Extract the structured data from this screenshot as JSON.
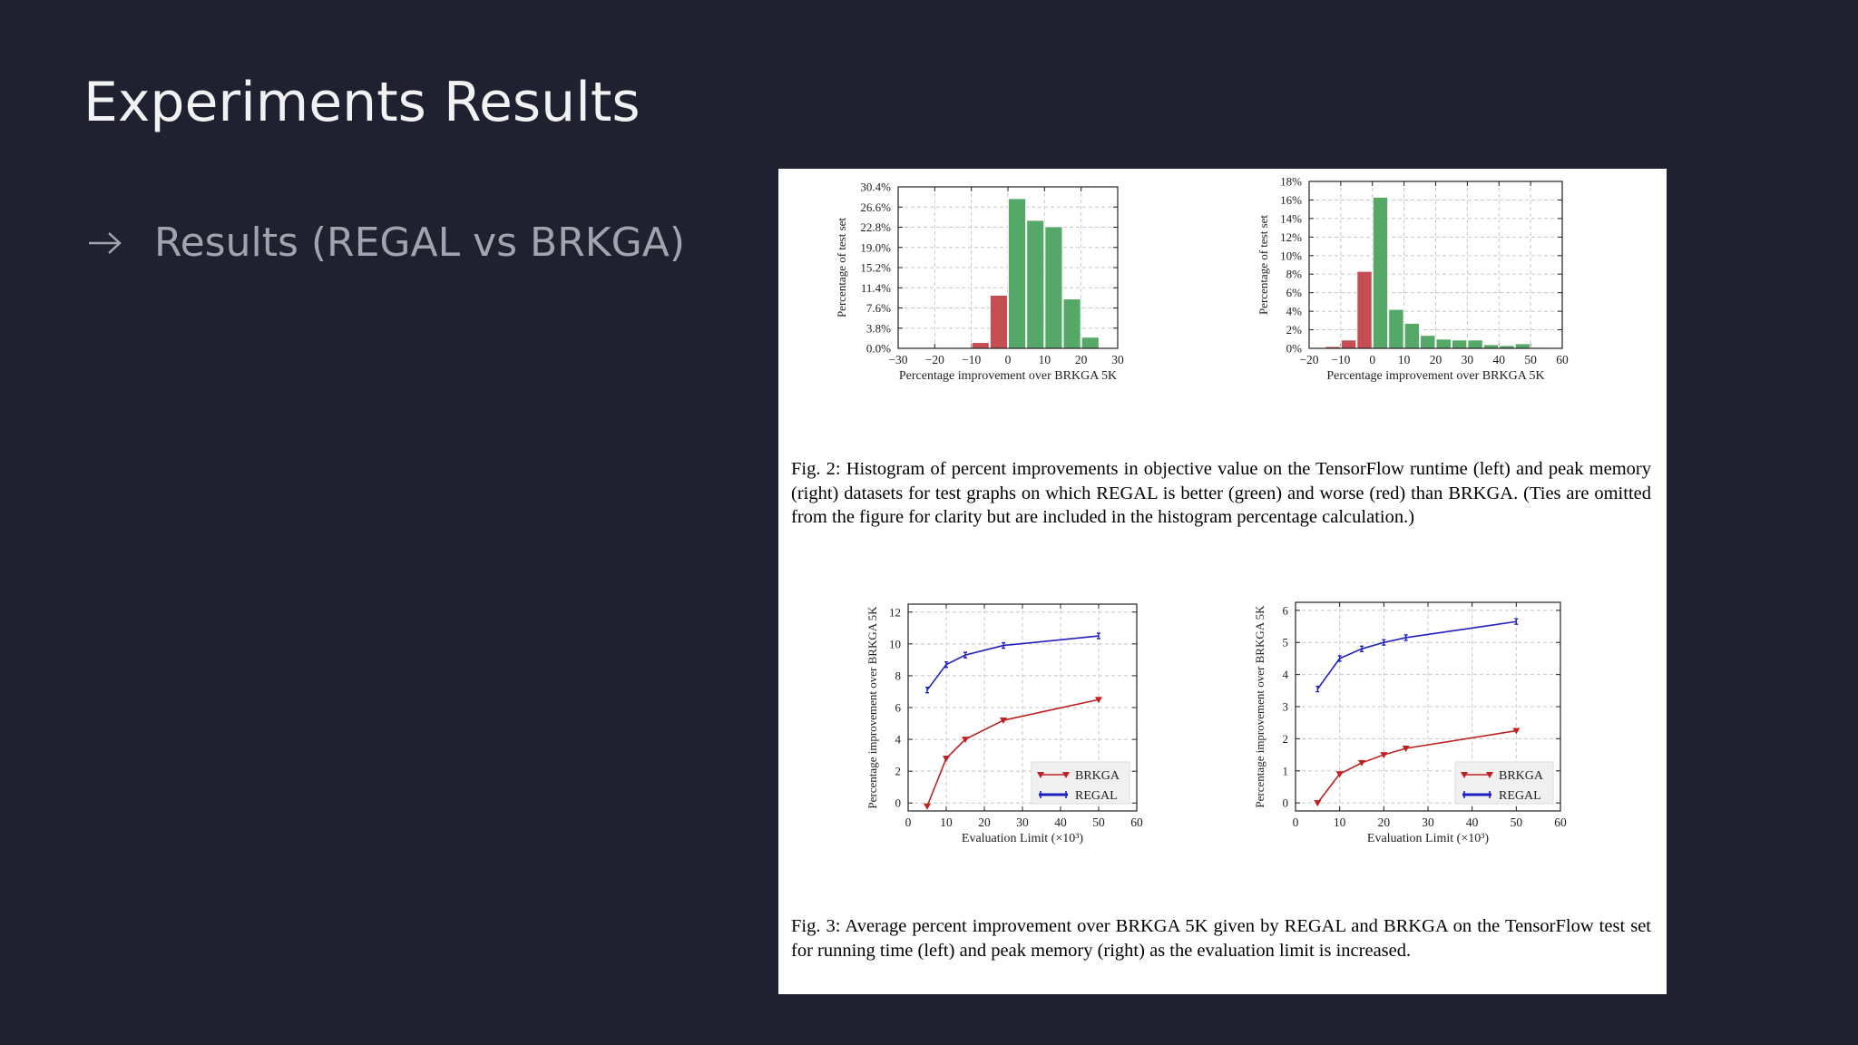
{
  "slide": {
    "title": "Experiments Results",
    "bullet": "Results (REGAL vs BRKGA)",
    "bullet_icon": "arrow-right-icon"
  },
  "colors": {
    "background": "#1f2130",
    "title": "#f2f2f2",
    "bullet_text": "#a2a4ad",
    "green": "#55a868",
    "red": "#c44e52",
    "regal_blue": "#2020c0",
    "brkga_red": "#c02020"
  },
  "captions": {
    "fig2": "Fig. 2:  Histogram of percent improvements in objective value on the TensorFlow runtime (left) and peak memory (right) datasets for test graphs on which REGAL is better (green) and worse (red) than BRKGA. (Ties are omitted from the figure for clarity but are included in the histogram percentage calculation.)",
    "fig3": "Fig. 3:  Average percent improvement over BRKGA 5K given by REGAL and BRKGA on the TensorFlow test set for running time (left) and peak memory (right) as the evaluation limit is increased."
  },
  "chart_data": [
    {
      "id": "hist_runtime",
      "type": "bar",
      "xlabel": "Percentage improvement over BRKGA 5K",
      "ylabel": "Percentage of test set",
      "xlim": [
        -30,
        30
      ],
      "ylim": [
        0,
        30.4
      ],
      "xticks": [
        -30,
        -20,
        -10,
        0,
        10,
        20,
        30
      ],
      "xtick_labels": [
        "−30",
        "−20",
        "−10",
        "0",
        "10",
        "20",
        "30"
      ],
      "yticks": [
        0,
        3.8,
        7.6,
        11.4,
        15.2,
        19.0,
        22.8,
        26.6,
        30.4
      ],
      "ytick_labels": [
        "0.0%",
        "3.8%",
        "7.6%",
        "11.4%",
        "15.2%",
        "19.0%",
        "22.8%",
        "26.6%",
        "30.4%"
      ],
      "grid": true,
      "bins": [
        {
          "x0": -10,
          "x1": -5,
          "value": 1.1,
          "color": "red"
        },
        {
          "x0": -5,
          "x1": 0,
          "value": 10.0,
          "color": "red"
        },
        {
          "x0": 0,
          "x1": 5,
          "value": 28.2,
          "color": "green"
        },
        {
          "x0": 5,
          "x1": 10,
          "value": 24.1,
          "color": "green"
        },
        {
          "x0": 10,
          "x1": 15,
          "value": 22.9,
          "color": "green"
        },
        {
          "x0": 15,
          "x1": 20,
          "value": 9.3,
          "color": "green"
        },
        {
          "x0": 20,
          "x1": 25,
          "value": 2.1,
          "color": "green"
        }
      ]
    },
    {
      "id": "hist_memory",
      "type": "bar",
      "xlabel": "Percentage improvement over BRKGA 5K",
      "ylabel": "Percentage of test set",
      "xlim": [
        -20,
        60
      ],
      "ylim": [
        0,
        18
      ],
      "xticks": [
        -20,
        -10,
        0,
        10,
        20,
        30,
        40,
        50,
        60
      ],
      "xtick_labels": [
        "−20",
        "−10",
        "0",
        "10",
        "20",
        "30",
        "40",
        "50",
        "60"
      ],
      "yticks": [
        0,
        2,
        4,
        6,
        8,
        10,
        12,
        14,
        16,
        18
      ],
      "ytick_labels": [
        "0%",
        "2%",
        "4%",
        "6%",
        "8%",
        "10%",
        "12%",
        "14%",
        "16%",
        "18%"
      ],
      "grid": true,
      "bins": [
        {
          "x0": -15,
          "x1": -10,
          "value": 0.2,
          "color": "red"
        },
        {
          "x0": -10,
          "x1": -5,
          "value": 0.9,
          "color": "red"
        },
        {
          "x0": -5,
          "x1": 0,
          "value": 8.3,
          "color": "red"
        },
        {
          "x0": 0,
          "x1": 5,
          "value": 16.3,
          "color": "green"
        },
        {
          "x0": 5,
          "x1": 10,
          "value": 4.2,
          "color": "green"
        },
        {
          "x0": 10,
          "x1": 15,
          "value": 2.7,
          "color": "green"
        },
        {
          "x0": 15,
          "x1": 20,
          "value": 1.4,
          "color": "green"
        },
        {
          "x0": 20,
          "x1": 25,
          "value": 1.0,
          "color": "green"
        },
        {
          "x0": 25,
          "x1": 30,
          "value": 0.9,
          "color": "green"
        },
        {
          "x0": 30,
          "x1": 35,
          "value": 0.9,
          "color": "green"
        },
        {
          "x0": 35,
          "x1": 40,
          "value": 0.4,
          "color": "green"
        },
        {
          "x0": 40,
          "x1": 45,
          "value": 0.3,
          "color": "green"
        },
        {
          "x0": 45,
          "x1": 50,
          "value": 0.5,
          "color": "green"
        },
        {
          "x0": 50,
          "x1": 55,
          "value": 0.1,
          "color": "green"
        }
      ]
    },
    {
      "id": "line_runtime",
      "type": "line",
      "xlabel": "Evaluation Limit (×10³)",
      "ylabel": "Percentage improvement over BRKGA 5K",
      "xlim": [
        0,
        60
      ],
      "ylim": [
        -0.5,
        12.5
      ],
      "xticks": [
        0,
        10,
        20,
        30,
        40,
        50,
        60
      ],
      "yticks": [
        0,
        2,
        4,
        6,
        8,
        10,
        12
      ],
      "grid": true,
      "legend_position": "lower-right",
      "series": [
        {
          "name": "BRKGA",
          "color": "brkga_red",
          "marker": "triangle-down",
          "x": [
            5,
            10,
            15,
            25,
            50
          ],
          "y": [
            -0.2,
            2.8,
            4.0,
            5.2,
            6.5
          ]
        },
        {
          "name": "REGAL",
          "color": "regal_blue",
          "marker": "errorbar",
          "x": [
            5,
            10,
            15,
            25,
            50
          ],
          "y": [
            7.1,
            8.7,
            9.3,
            9.9,
            10.5
          ]
        }
      ]
    },
    {
      "id": "line_memory",
      "type": "line",
      "xlabel": "Evaluation Limit (×10³)",
      "ylabel": "Percentage improvement over BRKGA 5K",
      "xlim": [
        0,
        60
      ],
      "ylim": [
        -0.25,
        6.25
      ],
      "xticks": [
        0,
        10,
        20,
        30,
        40,
        50,
        60
      ],
      "yticks": [
        0,
        1,
        2,
        3,
        4,
        5,
        6
      ],
      "grid": true,
      "legend_position": "lower-right",
      "series": [
        {
          "name": "BRKGA",
          "color": "brkga_red",
          "marker": "triangle-down",
          "x": [
            5,
            10,
            15,
            20,
            25,
            50
          ],
          "y": [
            0.0,
            0.9,
            1.25,
            1.5,
            1.7,
            2.25
          ]
        },
        {
          "name": "REGAL",
          "color": "regal_blue",
          "marker": "errorbar",
          "x": [
            5,
            10,
            15,
            20,
            25,
            50
          ],
          "y": [
            3.55,
            4.5,
            4.8,
            5.0,
            5.15,
            5.65
          ]
        }
      ]
    }
  ]
}
